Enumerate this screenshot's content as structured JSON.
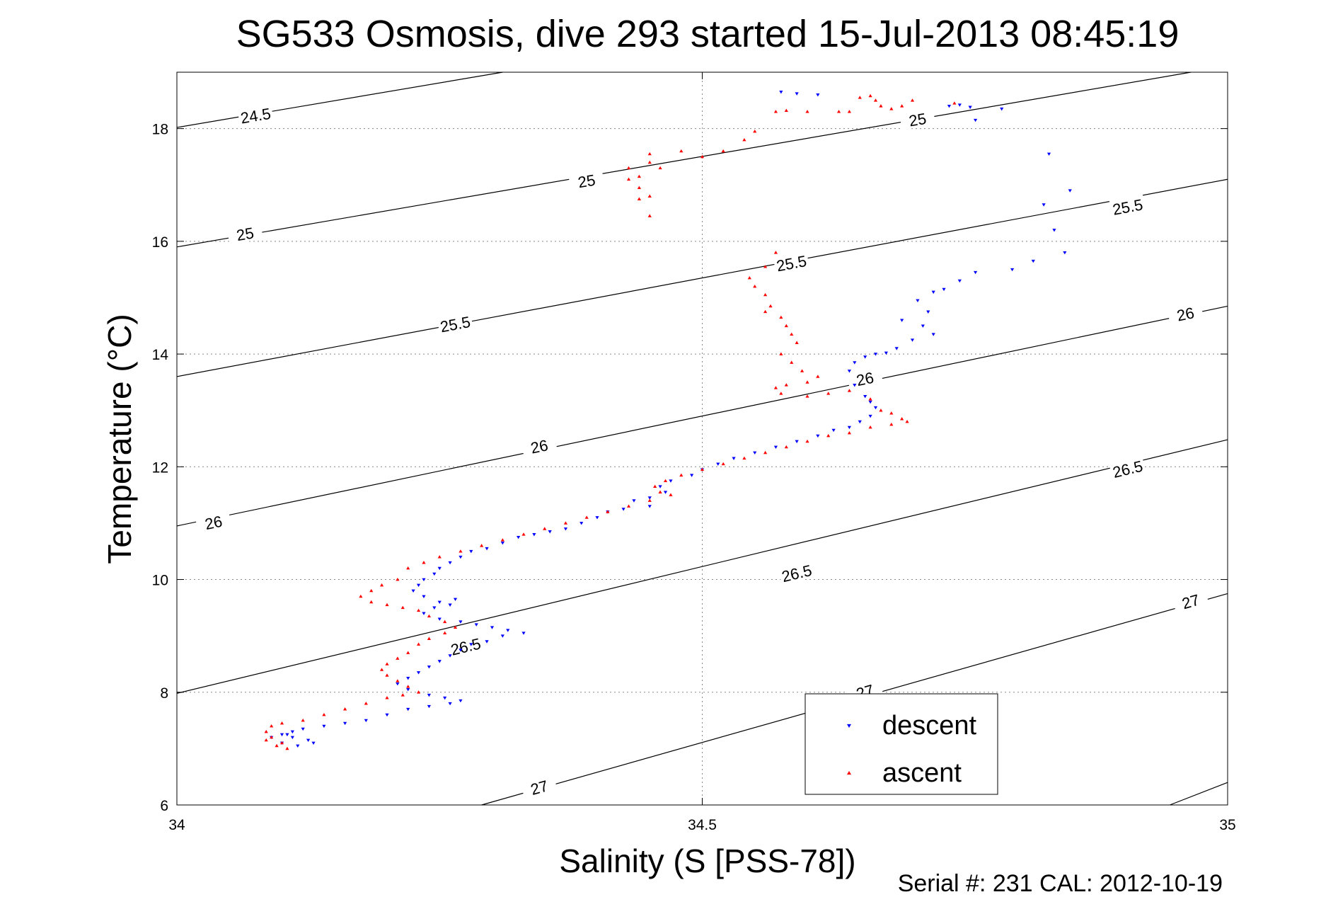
{
  "chart_data": {
    "type": "scatter",
    "title": "SG533 Osmosis, dive 293 started 15-Jul-2013 08:45:19",
    "xlabel": "Salinity (S [PSS-78])",
    "ylabel": "Temperature (°C)",
    "xlim": [
      34,
      35
    ],
    "ylim": [
      6,
      19
    ],
    "x_ticks": [
      34,
      34.5,
      35
    ],
    "x_tick_labels": [
      "34",
      "34.5",
      "35"
    ],
    "y_ticks": [
      6,
      8,
      10,
      12,
      14,
      16,
      18
    ],
    "y_tick_labels": [
      "6",
      "8",
      "10",
      "12",
      "14",
      "16",
      "18"
    ],
    "grid": true,
    "footer": "Serial #: 231  CAL: 2012-10-19",
    "legend_position": "bottom-center",
    "contours": [
      {
        "level": "24.5",
        "from": [
          34,
          18.02
        ],
        "to": [
          34.31,
          19.0
        ],
        "labels": [
          [
            34.075,
            18.22
          ]
        ]
      },
      {
        "level": "25",
        "from": [
          34,
          15.9
        ],
        "to": [
          34.965,
          19.0
        ],
        "labels": [
          [
            34.065,
            16.12
          ],
          [
            34.39,
            17.06
          ],
          [
            34.705,
            18.15
          ]
        ]
      },
      {
        "level": "25.5",
        "from": [
          34,
          13.6
        ],
        "to": [
          35,
          17.1
        ],
        "labels": [
          [
            34.265,
            14.52
          ],
          [
            34.585,
            15.6
          ],
          [
            34.905,
            16.6
          ]
        ]
      },
      {
        "level": "26",
        "from": [
          34,
          10.95
        ],
        "to": [
          35,
          14.85
        ],
        "labels": [
          [
            34.035,
            11.0
          ],
          [
            34.345,
            12.35
          ],
          [
            34.655,
            13.55
          ],
          [
            34.96,
            14.7
          ]
        ]
      },
      {
        "level": "26.5",
        "from": [
          34,
          7.98
        ],
        "to": [
          35,
          12.48
        ],
        "labels": [
          [
            34.275,
            8.8
          ],
          [
            34.59,
            10.1
          ],
          [
            34.905,
            11.95
          ]
        ]
      },
      {
        "level": "27",
        "from": [
          34.29,
          6.0
        ],
        "to": [
          35,
          9.75
        ],
        "labels": [
          [
            34.345,
            6.3
          ],
          [
            34.655,
            8.0
          ],
          [
            34.965,
            9.6
          ]
        ]
      },
      {
        "level": "27.5",
        "from": [
          34.945,
          6.0
        ],
        "to": [
          35,
          6.4
        ],
        "labels": []
      }
    ],
    "series": [
      {
        "name": "descent",
        "color": "#0000ff",
        "marker": "triangle-down",
        "points": [
          [
            34.575,
            18.65
          ],
          [
            34.59,
            18.62
          ],
          [
            34.61,
            18.6
          ],
          [
            34.735,
            18.4
          ],
          [
            34.745,
            18.42
          ],
          [
            34.755,
            18.38
          ],
          [
            34.76,
            18.15
          ],
          [
            34.785,
            18.35
          ],
          [
            34.83,
            17.55
          ],
          [
            34.85,
            16.9
          ],
          [
            34.825,
            16.65
          ],
          [
            34.835,
            16.2
          ],
          [
            34.845,
            15.8
          ],
          [
            34.815,
            15.65
          ],
          [
            34.795,
            15.5
          ],
          [
            34.76,
            15.45
          ],
          [
            34.745,
            15.3
          ],
          [
            34.73,
            15.15
          ],
          [
            34.72,
            15.1
          ],
          [
            34.705,
            14.95
          ],
          [
            34.715,
            14.75
          ],
          [
            34.69,
            14.6
          ],
          [
            34.71,
            14.5
          ],
          [
            34.72,
            14.35
          ],
          [
            34.7,
            14.25
          ],
          [
            34.685,
            14.1
          ],
          [
            34.675,
            14.02
          ],
          [
            34.665,
            14.0
          ],
          [
            34.655,
            13.95
          ],
          [
            34.645,
            13.85
          ],
          [
            34.64,
            13.7
          ],
          [
            34.645,
            13.45
          ],
          [
            34.655,
            13.25
          ],
          [
            34.66,
            13.15
          ],
          [
            34.665,
            13.05
          ],
          [
            34.66,
            12.9
          ],
          [
            34.65,
            12.8
          ],
          [
            34.64,
            12.7
          ],
          [
            34.625,
            12.65
          ],
          [
            34.61,
            12.55
          ],
          [
            34.59,
            12.45
          ],
          [
            34.57,
            12.35
          ],
          [
            34.55,
            12.25
          ],
          [
            34.53,
            12.15
          ],
          [
            34.515,
            12.05
          ],
          [
            34.5,
            11.95
          ],
          [
            34.49,
            11.85
          ],
          [
            34.47,
            11.75
          ],
          [
            34.46,
            11.65
          ],
          [
            34.465,
            11.55
          ],
          [
            34.45,
            11.45
          ],
          [
            34.435,
            11.4
          ],
          [
            34.45,
            11.3
          ],
          [
            34.425,
            11.25
          ],
          [
            34.41,
            11.2
          ],
          [
            34.4,
            11.1
          ],
          [
            34.385,
            11.0
          ],
          [
            34.37,
            10.9
          ],
          [
            34.355,
            10.85
          ],
          [
            34.34,
            10.8
          ],
          [
            34.325,
            10.75
          ],
          [
            34.31,
            10.65
          ],
          [
            34.295,
            10.55
          ],
          [
            34.28,
            10.5
          ],
          [
            34.27,
            10.4
          ],
          [
            34.26,
            10.3
          ],
          [
            34.25,
            10.2
          ],
          [
            34.245,
            10.1
          ],
          [
            34.235,
            10.0
          ],
          [
            34.23,
            9.9
          ],
          [
            34.225,
            9.8
          ],
          [
            34.235,
            9.7
          ],
          [
            34.25,
            9.6
          ],
          [
            34.265,
            9.65
          ],
          [
            34.26,
            9.55
          ],
          [
            34.245,
            9.5
          ],
          [
            34.235,
            9.4
          ],
          [
            34.25,
            9.3
          ],
          [
            34.27,
            9.25
          ],
          [
            34.285,
            9.2
          ],
          [
            34.3,
            9.15
          ],
          [
            34.315,
            9.1
          ],
          [
            34.33,
            9.05
          ],
          [
            34.31,
            9.0
          ],
          [
            34.295,
            8.9
          ],
          [
            34.28,
            8.85
          ],
          [
            34.27,
            8.75
          ],
          [
            34.26,
            8.65
          ],
          [
            34.25,
            8.55
          ],
          [
            34.24,
            8.45
          ],
          [
            34.23,
            8.35
          ],
          [
            34.22,
            8.25
          ],
          [
            34.21,
            8.15
          ],
          [
            34.22,
            8.05
          ],
          [
            34.24,
            7.95
          ],
          [
            34.255,
            7.9
          ],
          [
            34.27,
            7.85
          ],
          [
            34.26,
            7.8
          ],
          [
            34.24,
            7.75
          ],
          [
            34.22,
            7.7
          ],
          [
            34.2,
            7.6
          ],
          [
            34.18,
            7.5
          ],
          [
            34.16,
            7.45
          ],
          [
            34.14,
            7.4
          ],
          [
            34.12,
            7.35
          ],
          [
            34.11,
            7.3
          ],
          [
            34.1,
            7.25
          ],
          [
            34.11,
            7.2
          ],
          [
            34.125,
            7.15
          ],
          [
            34.13,
            7.1
          ],
          [
            34.115,
            7.05
          ],
          [
            34.1,
            7.1
          ],
          [
            34.09,
            7.2
          ],
          [
            34.105,
            7.25
          ]
        ]
      },
      {
        "name": "ascent",
        "color": "#ff0000",
        "marker": "triangle-up",
        "points": [
          [
            34.65,
            18.55
          ],
          [
            34.66,
            18.58
          ],
          [
            34.665,
            18.5
          ],
          [
            34.67,
            18.4
          ],
          [
            34.68,
            18.35
          ],
          [
            34.69,
            18.4
          ],
          [
            34.7,
            18.5
          ],
          [
            34.74,
            18.45
          ],
          [
            34.63,
            18.3
          ],
          [
            34.64,
            18.3
          ],
          [
            34.6,
            18.3
          ],
          [
            34.58,
            18.32
          ],
          [
            34.57,
            18.3
          ],
          [
            34.55,
            17.95
          ],
          [
            34.54,
            17.8
          ],
          [
            34.52,
            17.6
          ],
          [
            34.5,
            17.5
          ],
          [
            34.48,
            17.6
          ],
          [
            34.45,
            17.4
          ],
          [
            34.43,
            17.3
          ],
          [
            34.45,
            17.55
          ],
          [
            34.46,
            17.3
          ],
          [
            34.44,
            17.15
          ],
          [
            34.43,
            17.1
          ],
          [
            34.44,
            16.95
          ],
          [
            34.45,
            16.8
          ],
          [
            34.45,
            16.45
          ],
          [
            34.44,
            16.75
          ],
          [
            34.57,
            15.8
          ],
          [
            34.56,
            15.55
          ],
          [
            34.545,
            15.35
          ],
          [
            34.55,
            15.2
          ],
          [
            34.56,
            15.05
          ],
          [
            34.565,
            14.85
          ],
          [
            34.56,
            14.75
          ],
          [
            34.575,
            14.65
          ],
          [
            34.58,
            14.5
          ],
          [
            34.585,
            14.35
          ],
          [
            34.59,
            14.2
          ],
          [
            34.575,
            14.0
          ],
          [
            34.585,
            13.85
          ],
          [
            34.595,
            13.7
          ],
          [
            34.61,
            13.6
          ],
          [
            34.6,
            13.5
          ],
          [
            34.58,
            13.45
          ],
          [
            34.57,
            13.4
          ],
          [
            34.575,
            13.3
          ],
          [
            34.6,
            13.25
          ],
          [
            34.62,
            13.3
          ],
          [
            34.64,
            13.35
          ],
          [
            34.66,
            13.2
          ],
          [
            34.67,
            13.0
          ],
          [
            34.68,
            12.95
          ],
          [
            34.69,
            12.85
          ],
          [
            34.695,
            12.8
          ],
          [
            34.68,
            12.75
          ],
          [
            34.66,
            12.7
          ],
          [
            34.64,
            12.6
          ],
          [
            34.62,
            12.55
          ],
          [
            34.6,
            12.45
          ],
          [
            34.58,
            12.35
          ],
          [
            34.56,
            12.25
          ],
          [
            34.54,
            12.15
          ],
          [
            34.52,
            12.05
          ],
          [
            34.5,
            11.95
          ],
          [
            34.48,
            11.85
          ],
          [
            34.465,
            11.75
          ],
          [
            34.455,
            11.65
          ],
          [
            34.46,
            11.55
          ],
          [
            34.47,
            11.5
          ],
          [
            34.45,
            11.4
          ],
          [
            34.43,
            11.3
          ],
          [
            34.41,
            11.2
          ],
          [
            34.39,
            11.1
          ],
          [
            34.37,
            11.0
          ],
          [
            34.35,
            10.9
          ],
          [
            34.33,
            10.8
          ],
          [
            34.31,
            10.7
          ],
          [
            34.29,
            10.6
          ],
          [
            34.27,
            10.5
          ],
          [
            34.25,
            10.4
          ],
          [
            34.235,
            10.3
          ],
          [
            34.22,
            10.2
          ],
          [
            34.21,
            10.0
          ],
          [
            34.195,
            9.9
          ],
          [
            34.185,
            9.8
          ],
          [
            34.175,
            9.7
          ],
          [
            34.185,
            9.6
          ],
          [
            34.2,
            9.55
          ],
          [
            34.215,
            9.5
          ],
          [
            34.23,
            9.45
          ],
          [
            34.24,
            9.35
          ],
          [
            34.255,
            9.25
          ],
          [
            34.265,
            9.15
          ],
          [
            34.255,
            9.05
          ],
          [
            34.24,
            8.95
          ],
          [
            34.23,
            8.85
          ],
          [
            34.22,
            8.7
          ],
          [
            34.21,
            8.6
          ],
          [
            34.2,
            8.5
          ],
          [
            34.195,
            8.4
          ],
          [
            34.2,
            8.3
          ],
          [
            34.21,
            8.2
          ],
          [
            34.22,
            8.1
          ],
          [
            34.23,
            8.0
          ],
          [
            34.215,
            7.95
          ],
          [
            34.2,
            7.9
          ],
          [
            34.18,
            7.8
          ],
          [
            34.16,
            7.7
          ],
          [
            34.14,
            7.6
          ],
          [
            34.12,
            7.5
          ],
          [
            34.1,
            7.45
          ],
          [
            34.09,
            7.4
          ],
          [
            34.085,
            7.3
          ],
          [
            34.09,
            7.2
          ],
          [
            34.1,
            7.1
          ],
          [
            34.105,
            7.0
          ],
          [
            34.095,
            7.05
          ],
          [
            34.085,
            7.15
          ]
        ]
      }
    ]
  }
}
